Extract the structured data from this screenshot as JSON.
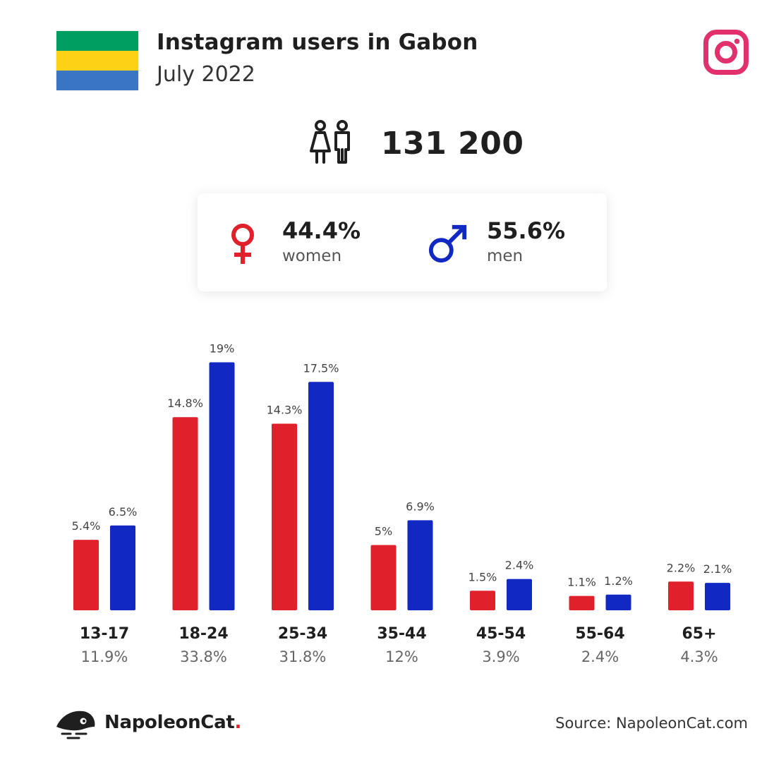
{
  "header": {
    "title": "Instagram users in Gabon",
    "subtitle": "July 2022"
  },
  "flag": {
    "colors": [
      "#009e60",
      "#fcd116",
      "#3a75c4"
    ]
  },
  "icons": {
    "platform": "instagram-icon",
    "people": "people-icon",
    "female": "female-symbol-icon",
    "male": "male-symbol-icon",
    "brand": "napoleoncat-logo-icon"
  },
  "total": {
    "value": "131 200"
  },
  "gender": {
    "women": {
      "pct": "44.4%",
      "label": "women",
      "color": "#e0202a"
    },
    "men": {
      "pct": "55.6%",
      "label": "men",
      "color": "#1129c2"
    }
  },
  "chart_data": {
    "type": "bar",
    "categories": [
      "13-17",
      "18-24",
      "25-34",
      "35-44",
      "45-54",
      "55-64",
      "65+"
    ],
    "category_totals": [
      "11.9%",
      "33.8%",
      "31.8%",
      "12%",
      "3.9%",
      "2.4%",
      "4.3%"
    ],
    "series": [
      {
        "name": "women",
        "color": "#e0202a",
        "values": [
          5.4,
          14.8,
          14.3,
          5,
          1.5,
          1.1,
          2.2
        ],
        "labels": [
          "5.4%",
          "14.8%",
          "14.3%",
          "5%",
          "1.5%",
          "1.1%",
          "2.2%"
        ]
      },
      {
        "name": "men",
        "color": "#1129c2",
        "values": [
          6.5,
          19,
          17.5,
          6.9,
          2.4,
          1.2,
          2.1
        ],
        "labels": [
          "6.5%",
          "19%",
          "17.5%",
          "6.9%",
          "2.4%",
          "1.2%",
          "2.1%"
        ]
      }
    ],
    "ylim": [
      0,
      19
    ],
    "grid": false
  },
  "footer": {
    "brand": "NapoleonCat",
    "brand_dot": ".",
    "source": "Source: NapoleonCat.com"
  }
}
